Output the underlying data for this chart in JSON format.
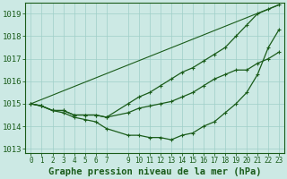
{
  "title": "Graphe pression niveau de la mer (hPa)",
  "bg_color": "#cce9e4",
  "grid_color": "#9fcfc8",
  "line_color": "#1a5c1a",
  "marker_color": "#1a5c1a",
  "ylim": [
    1012.8,
    1019.5
  ],
  "yticks": [
    1013,
    1014,
    1015,
    1016,
    1017,
    1018,
    1019
  ],
  "xlim": [
    -0.5,
    23.5
  ],
  "xticks": [
    0,
    1,
    2,
    3,
    4,
    5,
    6,
    7,
    9,
    10,
    11,
    12,
    13,
    14,
    15,
    16,
    17,
    18,
    19,
    20,
    21,
    22,
    23
  ],
  "xlabel_fontsize": 7.5,
  "ylabel_fontsize": 6.5,
  "series": [
    {
      "x": [
        0,
        1,
        2,
        3,
        4,
        5,
        6,
        7,
        9,
        10,
        11,
        12,
        13,
        14,
        15,
        16,
        17,
        18,
        19,
        20,
        21,
        22,
        23
      ],
      "y": [
        1015.0,
        1014.9,
        1014.7,
        1014.7,
        1014.5,
        1014.5,
        1014.5,
        1014.4,
        1015.0,
        1015.3,
        1015.5,
        1015.8,
        1016.1,
        1016.4,
        1016.6,
        1016.9,
        1017.2,
        1017.5,
        1018.0,
        1018.5,
        1019.0,
        1019.2,
        1019.4
      ],
      "marker": "+",
      "markersize": 3.5,
      "linewidth": 0.9
    },
    {
      "x": [
        0,
        1,
        2,
        3,
        4,
        5,
        6,
        7,
        9,
        10,
        11,
        12,
        13,
        14,
        15,
        16,
        17,
        18,
        19,
        20,
        21,
        22,
        23
      ],
      "y": [
        1015.0,
        1014.9,
        1014.7,
        1014.7,
        1014.5,
        1014.5,
        1014.5,
        1014.4,
        1014.6,
        1014.8,
        1014.9,
        1015.0,
        1015.1,
        1015.3,
        1015.5,
        1015.8,
        1016.1,
        1016.3,
        1016.5,
        1016.5,
        1016.8,
        1017.0,
        1017.3
      ],
      "marker": "+",
      "markersize": 3.5,
      "linewidth": 0.9
    },
    {
      "x": [
        0,
        1,
        2,
        3,
        4,
        5,
        6,
        7,
        9,
        10,
        11,
        12,
        13,
        14,
        15,
        16,
        17,
        18,
        19,
        20,
        21,
        22,
        23
      ],
      "y": [
        1015.0,
        1014.9,
        1014.7,
        1014.6,
        1014.4,
        1014.3,
        1014.2,
        1013.9,
        1013.6,
        1013.6,
        1013.5,
        1013.5,
        1013.4,
        1013.6,
        1013.7,
        1014.0,
        1014.2,
        1014.6,
        1015.0,
        1015.5,
        1016.3,
        1017.5,
        1018.3
      ],
      "marker": "+",
      "markersize": 3.5,
      "linewidth": 0.9
    },
    {
      "x": [
        0,
        23
      ],
      "y": [
        1015.0,
        1019.4
      ],
      "marker": null,
      "markersize": 0,
      "linewidth": 0.8
    }
  ]
}
